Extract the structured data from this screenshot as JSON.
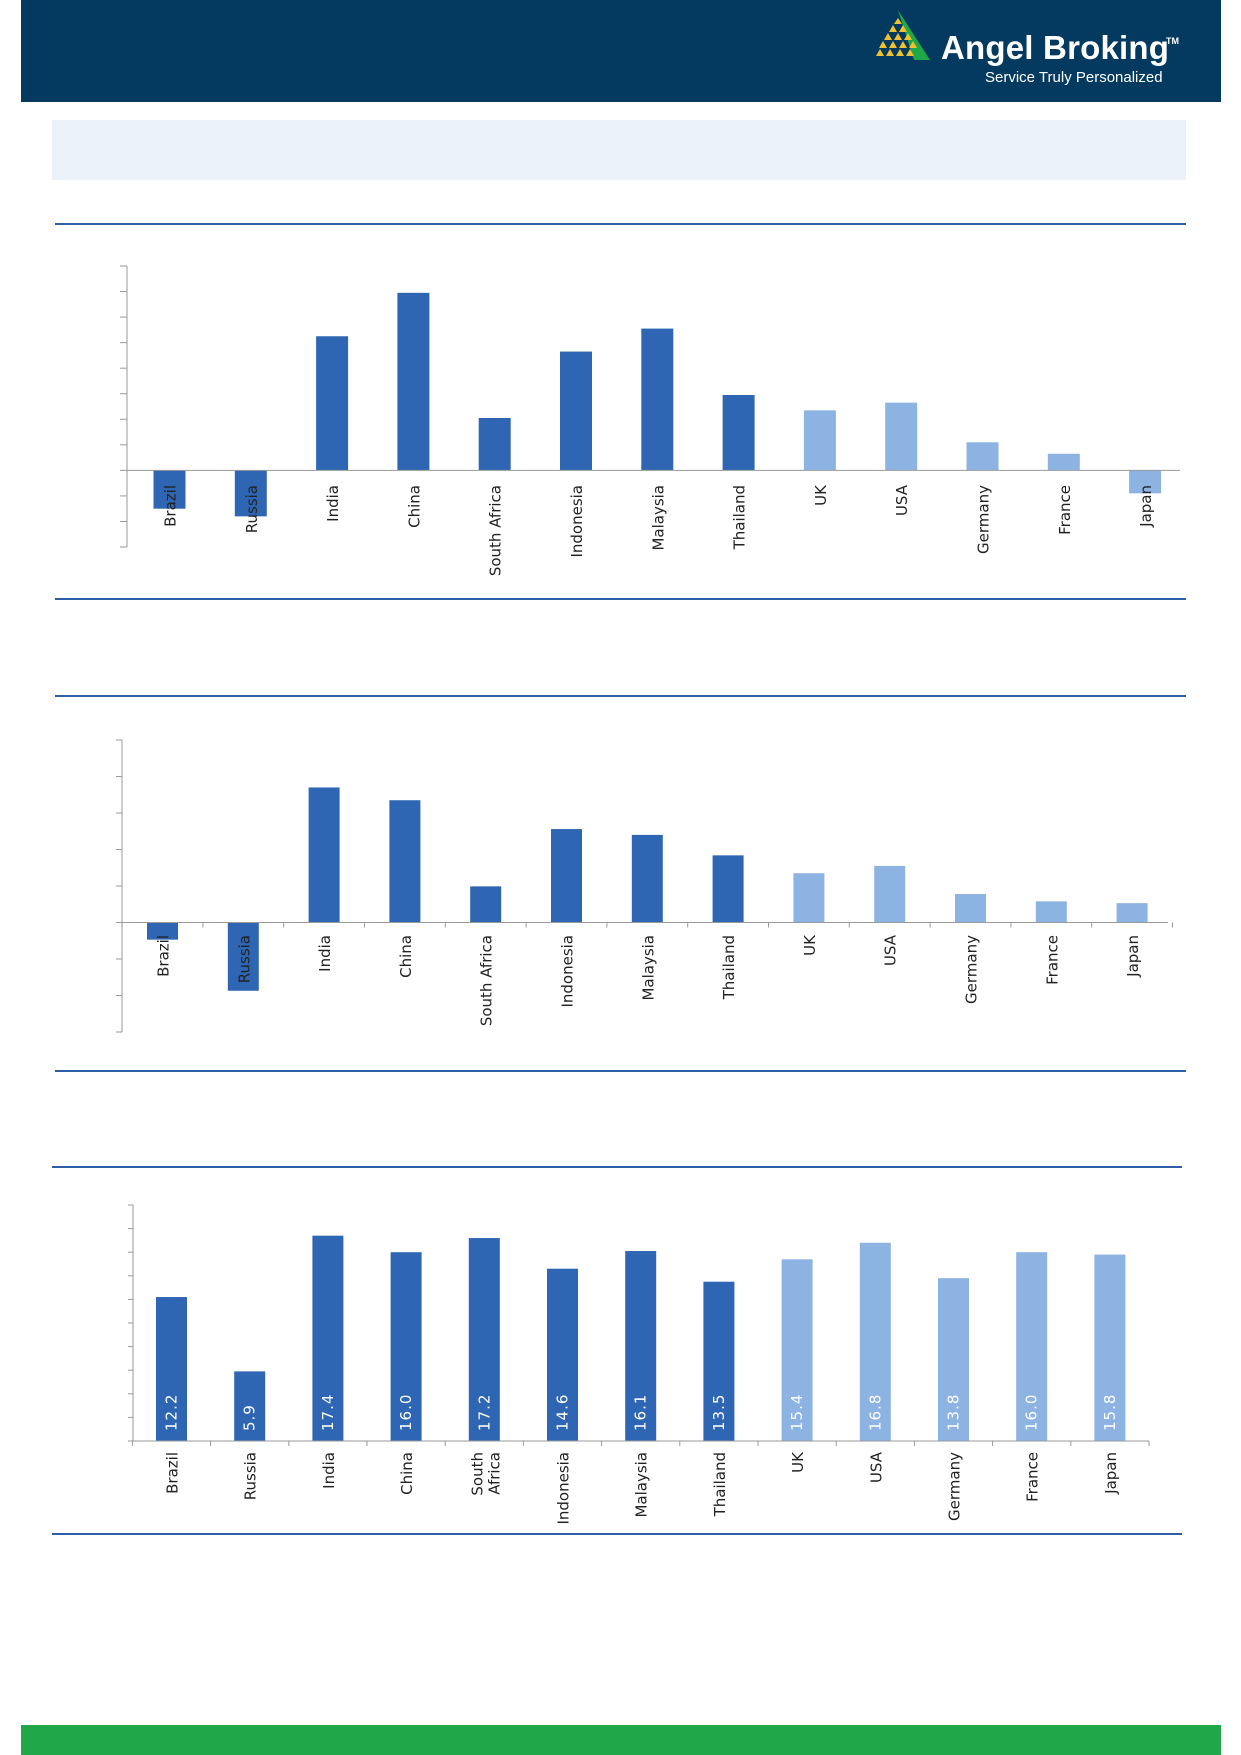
{
  "header": {
    "brand": "Angel Broking",
    "trademark": "TM",
    "tagline": "Service Truly Personalized",
    "logo_icon": "pyramid-logo-icon"
  },
  "colors": {
    "header_bg": "#053a60",
    "banner_bg": "#eaf1f9",
    "rule": "#2f5ea8",
    "emerging_bar": "#2f66b3",
    "developed_bar": "#8db3e2",
    "footer": "#1fa74a"
  },
  "chart_data": [
    {
      "type": "bar",
      "categories": [
        "Brazil",
        "Russia",
        "India",
        "China",
        "South Africa",
        "Indonesia",
        "Malaysia",
        "Thailand",
        "UK",
        "USA",
        "Germany",
        "France",
        "Japan"
      ],
      "groups": [
        "emerging",
        "emerging",
        "emerging",
        "emerging",
        "emerging",
        "emerging",
        "emerging",
        "emerging",
        "developed",
        "developed",
        "developed",
        "developed",
        "developed"
      ],
      "values": [
        -3.0,
        -3.6,
        10.5,
        13.9,
        4.1,
        9.3,
        11.1,
        5.9,
        4.7,
        5.3,
        2.2,
        1.3,
        -1.8
      ],
      "ylim": [
        -6,
        16
      ],
      "tick_count": 11,
      "grid": false,
      "data_labels": false
    },
    {
      "type": "bar",
      "categories": [
        "Brazil",
        "Russia",
        "India",
        "China",
        "South Africa",
        "Indonesia",
        "Malaysia",
        "Thailand",
        "UK",
        "USA",
        "Germany",
        "France",
        "Japan"
      ],
      "groups": [
        "emerging",
        "emerging",
        "emerging",
        "emerging",
        "emerging",
        "emerging",
        "emerging",
        "emerging",
        "developed",
        "developed",
        "developed",
        "developed",
        "developed"
      ],
      "values": [
        -4.7,
        -18.7,
        37.0,
        33.5,
        9.9,
        25.6,
        24.0,
        18.4,
        13.5,
        15.5,
        7.8,
        5.8,
        5.3
      ],
      "ylim": [
        -30,
        50
      ],
      "tick_count": 8,
      "grid": false,
      "data_labels": false
    },
    {
      "type": "bar",
      "categories": [
        "Brazil",
        "Russia",
        "India",
        "China",
        "South\nAfrica",
        "Indonesia",
        "Malaysia",
        "Thailand",
        "UK",
        "USA",
        "Germany",
        "France",
        "Japan"
      ],
      "groups": [
        "emerging",
        "emerging",
        "emerging",
        "emerging",
        "emerging",
        "emerging",
        "emerging",
        "emerging",
        "developed",
        "developed",
        "developed",
        "developed",
        "developed"
      ],
      "values": [
        12.2,
        5.9,
        17.4,
        16.0,
        17.2,
        14.6,
        16.1,
        13.5,
        15.4,
        16.8,
        13.8,
        16.0,
        15.8
      ],
      "ylim": [
        0,
        20
      ],
      "tick_count": 10,
      "grid": false,
      "data_labels": true
    }
  ]
}
